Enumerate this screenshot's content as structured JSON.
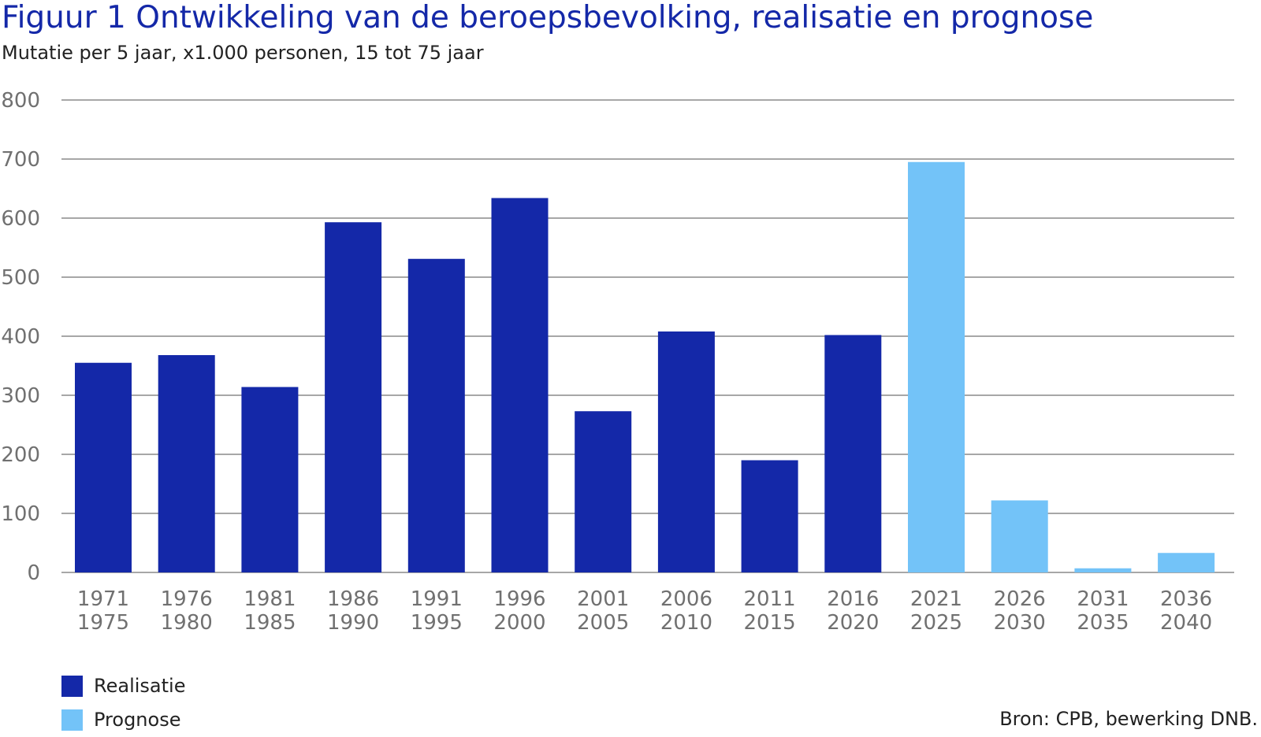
{
  "figure": {
    "title": "Figuur 1  Ontwikkeling van de beroepsbevolking, realisatie en prognose",
    "subtitle": "Mutatie per 5 jaar, x1.000 personen, 15 tot 75 jaar",
    "source": "Bron: CPB, bewerking DNB."
  },
  "legend": {
    "items": [
      {
        "label": "Realisatie",
        "color": "#1428a8"
      },
      {
        "label": "Prognose",
        "color": "#73c3f8"
      }
    ]
  },
  "chart_data": {
    "type": "bar",
    "title": "Figuur 1  Ontwikkeling van de beroepsbevolking, realisatie en prognose",
    "subtitle": "Mutatie per 5 jaar, x1.000 personen, 15 tot 75 jaar",
    "categories": [
      [
        "1971",
        "1975"
      ],
      [
        "1976",
        "1980"
      ],
      [
        "1981",
        "1985"
      ],
      [
        "1986",
        "1990"
      ],
      [
        "1991",
        "1995"
      ],
      [
        "1996",
        "2000"
      ],
      [
        "2001",
        "2005"
      ],
      [
        "2006",
        "2010"
      ],
      [
        "2011",
        "2015"
      ],
      [
        "2016",
        "2020"
      ],
      [
        "2021",
        "2025"
      ],
      [
        "2026",
        "2030"
      ],
      [
        "2031",
        "2035"
      ],
      [
        "2036",
        "2040"
      ]
    ],
    "values": [
      355,
      368,
      314,
      593,
      531,
      634,
      273,
      408,
      190,
      402,
      695,
      122,
      7,
      33
    ],
    "bar_series": [
      "Realisatie",
      "Realisatie",
      "Realisatie",
      "Realisatie",
      "Realisatie",
      "Realisatie",
      "Realisatie",
      "Realisatie",
      "Realisatie",
      "Realisatie",
      "Prognose",
      "Prognose",
      "Prognose",
      "Prognose"
    ],
    "series": [
      {
        "name": "Realisatie",
        "color": "#1428a8"
      },
      {
        "name": "Prognose",
        "color": "#73c3f8"
      }
    ],
    "ylim": [
      0,
      800
    ],
    "yticks": [
      0,
      100,
      200,
      300,
      400,
      500,
      600,
      700,
      800
    ],
    "grid": true,
    "legend_position": "bottom-left",
    "xlabel": "",
    "ylabel": ""
  }
}
